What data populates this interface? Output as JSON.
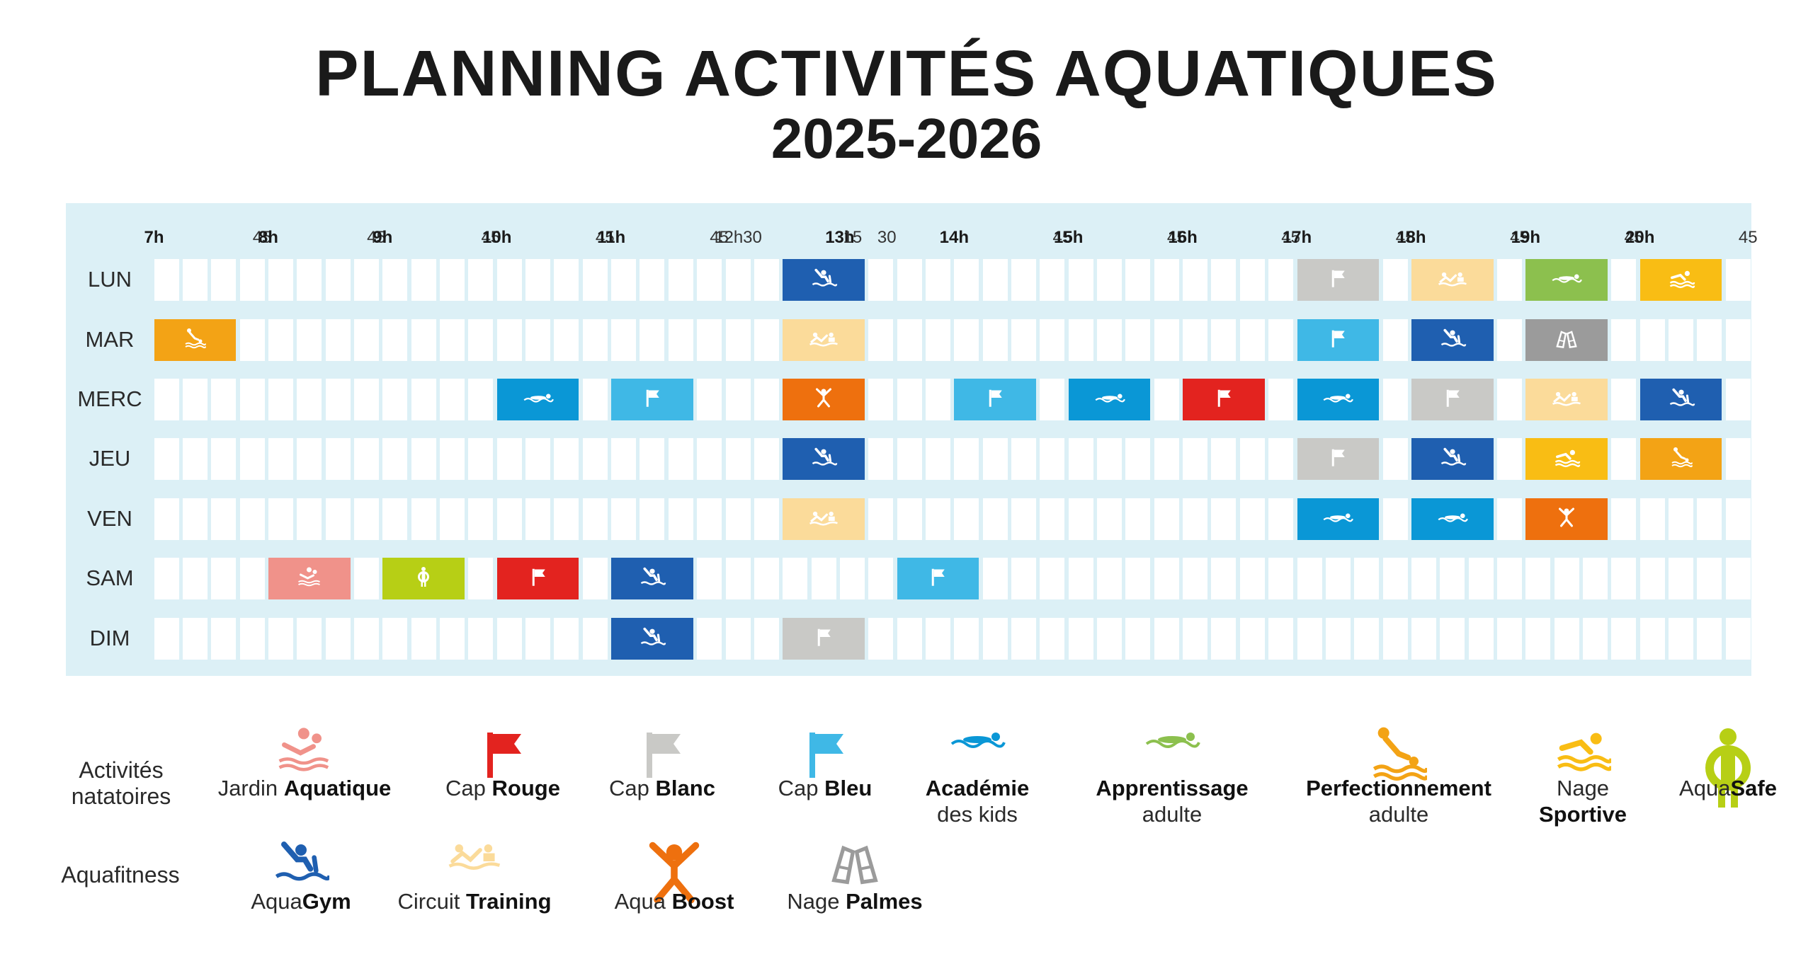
{
  "title": "PLANNING ACTIVITÉS AQUATIQUES",
  "subtitle": "2025-2026",
  "time_labels": [
    {
      "label": "7h",
      "bold": true
    },
    {
      "label": "45",
      "bold": false
    },
    {
      "label": "8h",
      "bold": true
    },
    {
      "label": "45",
      "bold": false
    },
    {
      "label": "9h",
      "bold": true
    },
    {
      "label": "45",
      "bold": false
    },
    {
      "label": "10h",
      "bold": true
    },
    {
      "label": "45",
      "bold": false
    },
    {
      "label": "11h",
      "bold": true
    },
    {
      "label": "45",
      "bold": false
    },
    {
      "label": "12h30",
      "bold": false
    },
    {
      "label": "13h",
      "bold": true
    },
    {
      "label": "15",
      "bold": false
    },
    {
      "label": "30",
      "bold": false
    },
    {
      "label": "14h",
      "bold": true
    },
    {
      "label": "45",
      "bold": false
    },
    {
      "label": "15h",
      "bold": true
    },
    {
      "label": "45",
      "bold": false
    },
    {
      "label": "16h",
      "bold": true
    },
    {
      "label": "45",
      "bold": false
    },
    {
      "label": "17h",
      "bold": true
    },
    {
      "label": "45",
      "bold": false
    },
    {
      "label": "18h",
      "bold": true
    },
    {
      "label": "45",
      "bold": false
    },
    {
      "label": "19h",
      "bold": true
    },
    {
      "label": "45",
      "bold": false
    },
    {
      "label": "20h",
      "bold": true
    },
    {
      "label": "45",
      "bold": false
    }
  ],
  "days": [
    "LUN",
    "MAR",
    "MERC",
    "JEU",
    "VEN",
    "SAM",
    "DIM"
  ],
  "activities": {
    "jardin": {
      "color": "#f0928a",
      "icon": "jardin-aquatique-icon"
    },
    "cap_rouge": {
      "color": "#e3231f",
      "icon": "flag-icon"
    },
    "cap_blanc": {
      "color": "#c9c9c6",
      "icon": "flag-icon"
    },
    "cap_bleu": {
      "color": "#3fb8e6",
      "icon": "flag-icon"
    },
    "academie": {
      "color": "#0a97d6",
      "icon": "swimmer-wave-icon"
    },
    "apprentissage": {
      "color": "#8cc04e",
      "icon": "swimmer-wave-icon"
    },
    "perfectionnement": {
      "color": "#f3a315",
      "icon": "diver-icon"
    },
    "sportive": {
      "color": "#f9bd14",
      "icon": "swimmer-icon"
    },
    "aquasafe": {
      "color": "#b7cf15",
      "icon": "lifesaver-person-icon"
    },
    "aquagym": {
      "color": "#1f5fb0",
      "icon": "aquagym-icon"
    },
    "circuit": {
      "color": "#fbdb9a",
      "icon": "circuit-training-icon"
    },
    "boost": {
      "color": "#ee700e",
      "icon": "jumping-person-icon"
    },
    "palmes": {
      "color": "#9b9b9b",
      "icon": "fins-icon"
    }
  },
  "schedule": [
    [
      {
        "slot": 22,
        "activity": "aquagym"
      },
      {
        "slot": 40,
        "activity": "cap_blanc"
      },
      {
        "slot": 44,
        "activity": "circuit"
      },
      {
        "slot": 48,
        "activity": "apprentissage"
      },
      {
        "slot": 52,
        "activity": "sportive"
      }
    ],
    [
      {
        "slot": 0,
        "activity": "perfectionnement"
      },
      {
        "slot": 22,
        "activity": "circuit"
      },
      {
        "slot": 40,
        "activity": "cap_bleu"
      },
      {
        "slot": 44,
        "activity": "aquagym"
      },
      {
        "slot": 48,
        "activity": "palmes"
      }
    ],
    [
      {
        "slot": 12,
        "activity": "academie"
      },
      {
        "slot": 16,
        "activity": "cap_bleu"
      },
      {
        "slot": 22,
        "activity": "boost"
      },
      {
        "slot": 28,
        "activity": "cap_bleu"
      },
      {
        "slot": 32,
        "activity": "academie"
      },
      {
        "slot": 36,
        "activity": "cap_rouge"
      },
      {
        "slot": 40,
        "activity": "academie"
      },
      {
        "slot": 44,
        "activity": "cap_blanc"
      },
      {
        "slot": 48,
        "activity": "circuit"
      },
      {
        "slot": 52,
        "activity": "aquagym"
      }
    ],
    [
      {
        "slot": 22,
        "activity": "aquagym"
      },
      {
        "slot": 40,
        "activity": "cap_blanc"
      },
      {
        "slot": 44,
        "activity": "aquagym"
      },
      {
        "slot": 48,
        "activity": "sportive"
      },
      {
        "slot": 52,
        "activity": "perfectionnement"
      }
    ],
    [
      {
        "slot": 22,
        "activity": "circuit"
      },
      {
        "slot": 40,
        "activity": "academie"
      },
      {
        "slot": 44,
        "activity": "academie"
      },
      {
        "slot": 48,
        "activity": "boost"
      }
    ],
    [
      {
        "slot": 4,
        "activity": "jardin"
      },
      {
        "slot": 8,
        "activity": "aquasafe"
      },
      {
        "slot": 12,
        "activity": "cap_rouge"
      },
      {
        "slot": 16,
        "activity": "aquagym"
      },
      {
        "slot": 26,
        "activity": "cap_bleu"
      }
    ],
    [
      {
        "slot": 16,
        "activity": "aquagym"
      },
      {
        "slot": 22,
        "activity": "cap_blanc"
      }
    ]
  ],
  "legend": {
    "natatoires_label": [
      "Activités",
      "natatoires"
    ],
    "aquafitness_label": "Aquafitness",
    "natatoires": [
      {
        "key": "jardin",
        "normal1": "Jardin ",
        "bold1": "Aquatique",
        "normal2": "",
        "bold2": ""
      },
      {
        "key": "cap_rouge",
        "normal1": "Cap ",
        "bold1": "Rouge",
        "normal2": "",
        "bold2": ""
      },
      {
        "key": "cap_blanc",
        "normal1": "Cap ",
        "bold1": "Blanc",
        "normal2": "",
        "bold2": ""
      },
      {
        "key": "cap_bleu",
        "normal1": "Cap ",
        "bold1": "Bleu",
        "normal2": "",
        "bold2": ""
      },
      {
        "key": "academie",
        "normal1": "",
        "bold1": "Académie",
        "normal2": "des kids",
        "bold2": ""
      },
      {
        "key": "apprentissage",
        "normal1": "",
        "bold1": "Apprentissage",
        "normal2": "adulte",
        "bold2": ""
      },
      {
        "key": "perfectionnement",
        "normal1": "",
        "bold1": "Perfectionnement",
        "normal2": "adulte",
        "bold2": ""
      },
      {
        "key": "sportive",
        "normal1": "Nage",
        "bold1": "",
        "normal2": "",
        "bold2": "Sportive"
      },
      {
        "key": "aquasafe",
        "normal1": "Aqua",
        "bold1": "Safe",
        "normal2": "",
        "bold2": ""
      }
    ],
    "aquafitness": [
      {
        "key": "aquagym",
        "normal1": "Aqua",
        "bold1": "Gym",
        "normal2": "",
        "bold2": ""
      },
      {
        "key": "circuit",
        "normal1": "Circuit ",
        "bold1": "Training",
        "normal2": "",
        "bold2": ""
      },
      {
        "key": "boost",
        "normal1": "Aqua ",
        "bold1": "Boost",
        "normal2": "",
        "bold2": ""
      },
      {
        "key": "palmes",
        "normal1": "Nage ",
        "bold1": "Palmes",
        "normal2": "",
        "bold2": ""
      }
    ]
  }
}
